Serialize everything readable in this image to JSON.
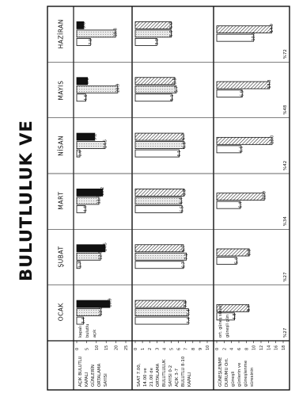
{
  "page": {
    "title": "BULUTLULUK VE"
  },
  "months": [
    "OCAK",
    "ŞUBAT",
    "MART",
    "NİSAN",
    "MAYIS",
    "HAZİRAN"
  ],
  "chart_data": [
    {
      "type": "bar",
      "section": "top",
      "row_label": "AÇIK BULUTLU KAPALI GÜNLERİN ORTALAMA SAYISI",
      "yaxis_ticks": [
        "25",
        "20",
        "15",
        "10",
        "5",
        "0"
      ],
      "ylim": [
        0,
        25
      ],
      "categories": [
        "OCAK",
        "ŞUBAT",
        "MART",
        "NİSAN",
        "MAYIS",
        "HAZİRAN"
      ],
      "annotations": [
        "kapalı",
        "bulutlu",
        "açık"
      ],
      "series": [
        {
          "name": "kapalı",
          "values": [
            16.9,
            14.5,
            13.2,
            9.2,
            5.5,
            3.6
          ]
        },
        {
          "name": "bulutlu",
          "values": [
            12.2,
            12.1,
            11.3,
            14.5,
            20.9,
            19.8
          ]
        },
        {
          "name": "açık",
          "values": [
            3.4,
            1.7,
            4.4,
            1.6,
            4.6,
            7.0
          ]
        }
      ],
      "data_labels": {
        "kapalı": [
          "16.9",
          "14.5",
          "13.2",
          "9.2",
          "5.5",
          "3.6"
        ],
        "bulutlu": [
          "12.2",
          "12.1",
          "11.3",
          "14.5",
          "20.9",
          "19.8"
        ],
        "açık": [
          "3.4",
          "1.7",
          "4.4",
          "1.6",
          "4.6",
          "7.0"
        ]
      }
    },
    {
      "type": "bar",
      "section": "middle",
      "row_label": "SAAT 7.00, 14.00 ve 21.00 de ORTALAMA BULUTLULUK SAYISI 0-2 AÇIK 3-7 BULUTLU 8-10 KAPALI",
      "yaxis_ticks": [
        "10",
        "9",
        "8",
        "7",
        "6",
        "5",
        "4",
        "3",
        "2",
        "1",
        "0"
      ],
      "ylim": [
        0,
        10
      ],
      "categories": [
        "OCAK",
        "ŞUBAT",
        "MART",
        "NİSAN",
        "MAYIS",
        "HAZİRAN"
      ],
      "series": [
        {
          "name": "7.00",
          "values": [
            7.0,
            6.7,
            6.8,
            6.7,
            5.5,
            5.0
          ]
        },
        {
          "name": "14.00",
          "values": [
            7.4,
            7.1,
            6.4,
            6.8,
            5.7,
            5.0
          ]
        },
        {
          "name": "21.00",
          "values": [
            7.4,
            6.7,
            6.5,
            6.1,
            5.1,
            3.0
          ]
        }
      ],
      "data_labels": {
        "7.00": [
          "7.0",
          "6.7",
          "6.8",
          "6.7",
          "5.5",
          "5.0"
        ],
        "14.00": [
          "7.4",
          "7.1",
          "6.4",
          "6.8",
          "5.7",
          "5.0"
        ],
        "21.00": [
          "7.4",
          "6.7",
          "6.5",
          "6.1",
          "5.1",
          "3.0"
        ]
      }
    },
    {
      "type": "bar",
      "section": "bottom",
      "row_label": "GÜNEŞLENME DURUMU Ort. güneşli günlerin ve güneşlenme süresinin",
      "yaxis_ticks": [
        "18",
        "16",
        "14",
        "12",
        "10",
        "8",
        "6",
        "4",
        "2",
        "0"
      ],
      "ylim": [
        0,
        18
      ],
      "categories": [
        "OCAK",
        "ŞUBAT",
        "MART",
        "NİSAN",
        "MAYIS",
        "HAZİRAN"
      ],
      "annotations": [
        "ort. güneş süresi",
        "güneşli gün"
      ],
      "series": [
        {
          "name": "güneşli gün",
          "values": [
            8.7,
            8.8,
            12.9,
            15.0,
            14.3,
            14.9
          ]
        },
        {
          "name": "güneş süresi",
          "values": [
            4.8,
            5.4,
            6.4,
            6.6,
            6.9,
            10.0
          ]
        }
      ],
      "percent_labels": [
        "%27",
        "%27",
        "%34",
        "%42",
        "%48",
        "%72"
      ],
      "data_labels": {
        "güneşli gün": [
          "8.7",
          "8.8",
          "12.9",
          "15.0",
          "14.3",
          "14.9"
        ],
        "güneş süresi": [
          "4.8",
          "5.4",
          "6.4",
          "6.6",
          "6.9",
          "10.0"
        ]
      }
    }
  ]
}
